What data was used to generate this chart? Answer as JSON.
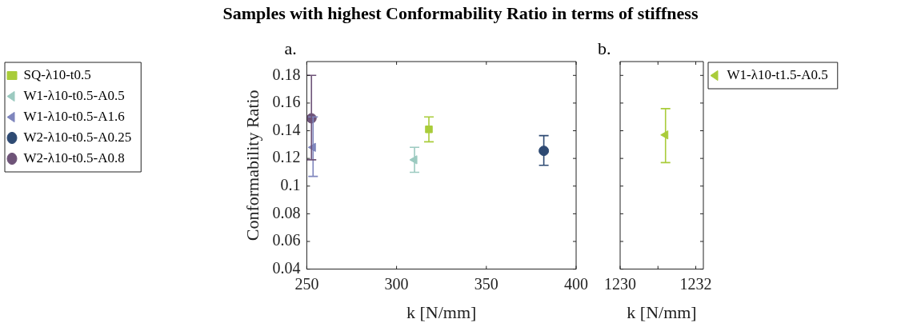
{
  "chart_data": [
    {
      "type": "scatter",
      "title": "Samples with highest Conformability Ratio in terms of stiffness",
      "xlabel": "k [N/mm]",
      "ylabel": "Conformability Ratio",
      "annotations": [
        "a."
      ],
      "xlim": [
        250,
        400
      ],
      "xticks": [
        250,
        300,
        350,
        400
      ],
      "ylim": [
        0.04,
        0.19
      ],
      "yticks": [
        0.04,
        0.06,
        0.08,
        0.1,
        0.12,
        0.14,
        0.16,
        0.18
      ],
      "grid": false,
      "legend": "left",
      "series": [
        {
          "name": "SQ-λ10-t0.5",
          "color": "#a9cc3a",
          "marker": "square",
          "x": [
            318
          ],
          "values": [
            0.141
          ],
          "errors": [
            [
              0.132,
              0.15
            ]
          ]
        },
        {
          "name": "W1-λ10-t0.5-A0.5",
          "color": "#9ccac0",
          "marker": "triangle",
          "x": [
            310
          ],
          "values": [
            0.119
          ],
          "errors": [
            [
              0.11,
              0.128
            ]
          ]
        },
        {
          "name": "W1-λ10-t0.5-A1.6",
          "color": "#7f86bd",
          "marker": "triangle",
          "x": [
            253.5
          ],
          "values": [
            0.128
          ],
          "errors": [
            [
              0.107,
              0.15
            ]
          ]
        },
        {
          "name": "W2-λ10-t0.5-A0.25",
          "color": "#2e4a73",
          "marker": "circle",
          "x": [
            382
          ],
          "values": [
            0.1255
          ],
          "errors": [
            [
              0.115,
              0.1365
            ]
          ]
        },
        {
          "name": "W2-λ10-t0.5-A0.8",
          "color": "#6e5378",
          "marker": "circle",
          "x": [
            252.6
          ],
          "values": [
            0.149
          ],
          "errors": [
            [
              0.119,
              0.18
            ]
          ]
        }
      ]
    },
    {
      "type": "scatter",
      "xlabel": "k [N/mm]",
      "annotations": [
        "b."
      ],
      "xlim": [
        1230,
        1232.2
      ],
      "xticks": [
        1230,
        {
          "value": 1231,
          "label": null
        },
        1232
      ],
      "ylim": [
        0.04,
        0.19
      ],
      "yticks": [
        0.04,
        0.06,
        0.08,
        0.1,
        0.12,
        0.14,
        0.16,
        0.18
      ],
      "grid": false,
      "legend": "right",
      "tick_labels": "x",
      "series": [
        {
          "name": "W1-λ10-t1.5-A0.5",
          "color": "#a9cc3a",
          "marker": "triangle",
          "x": [
            1231.2
          ],
          "values": [
            0.137
          ],
          "errors": [
            [
              0.117,
              0.156
            ]
          ]
        }
      ]
    }
  ]
}
